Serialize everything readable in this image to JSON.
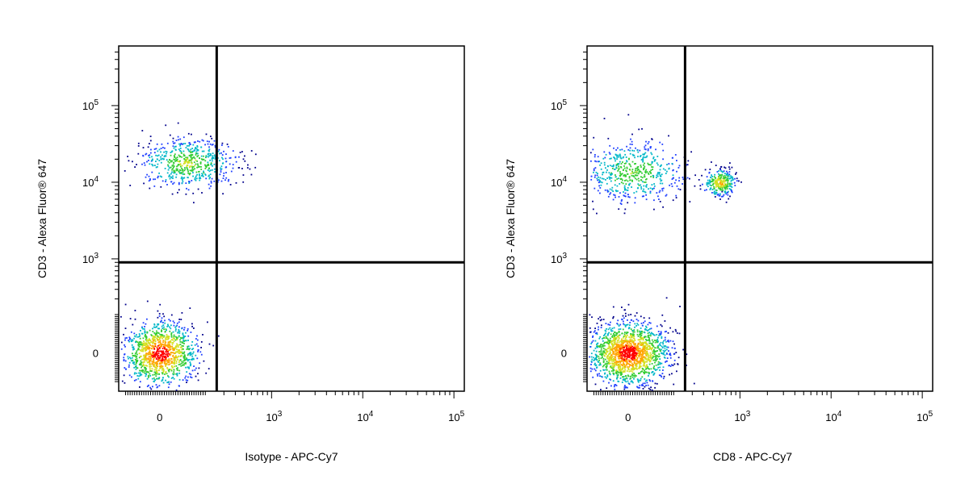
{
  "chart_data": [
    {
      "type": "scatter",
      "subtype": "flow-cytometry-density-dot-plot",
      "xlabel": "Isotype - APC-Cy7",
      "ylabel": "CD3 - Alexa Fluor® 647",
      "x_scale": "biexponential",
      "y_scale": "biexponential",
      "x_ticks": [
        {
          "label": "0",
          "value": 0
        },
        {
          "label": "10^3",
          "value": 1000
        },
        {
          "label": "10^4",
          "value": 10000
        },
        {
          "label": "10^5",
          "value": 100000
        }
      ],
      "y_ticks": [
        {
          "label": "0",
          "value": 0
        },
        {
          "label": "10^3",
          "value": 1000
        },
        {
          "label": "10^4",
          "value": 10000
        },
        {
          "label": "10^5",
          "value": 100000
        }
      ],
      "quadrant_gate": {
        "x": 250,
        "y": 900
      },
      "color_scale": [
        "#00008b",
        "#1f3fff",
        "#00b7c8",
        "#33cc33",
        "#d4e020",
        "#ffa500",
        "#ff0000"
      ],
      "populations": [
        {
          "x": 0,
          "y": 0,
          "x_spread": 40,
          "y_spread": 35,
          "count": 1150,
          "density": 1.0
        },
        {
          "x": 120,
          "y": 18000,
          "x_spread": 55,
          "y_spread": 28,
          "count": 600,
          "density": 0.6
        }
      ]
    },
    {
      "type": "scatter",
      "subtype": "flow-cytometry-density-dot-plot",
      "xlabel": "CD8 - APC-Cy7",
      "ylabel": "CD3 - Alexa Fluor® 647",
      "x_scale": "biexponential",
      "y_scale": "biexponential",
      "x_ticks": [
        {
          "label": "0",
          "value": 0
        },
        {
          "label": "10^3",
          "value": 1000
        },
        {
          "label": "10^4",
          "value": 10000
        },
        {
          "label": "10^5",
          "value": 100000
        }
      ],
      "y_ticks": [
        {
          "label": "0",
          "value": 0
        },
        {
          "label": "10^3",
          "value": 1000
        },
        {
          "label": "10^4",
          "value": 10000
        },
        {
          "label": "10^5",
          "value": 100000
        }
      ],
      "quadrant_gate": {
        "x": 250,
        "y": 900
      },
      "color_scale": [
        "#00008b",
        "#1f3fff",
        "#00b7c8",
        "#33cc33",
        "#d4e020",
        "#ffa500",
        "#ff0000"
      ],
      "populations": [
        {
          "x": 0,
          "y": 0,
          "x_spread": 45,
          "y_spread": 35,
          "count": 1600,
          "density": 1.0
        },
        {
          "x": 20,
          "y": 14000,
          "x_spread": 60,
          "y_spread": 35,
          "count": 550,
          "density": 0.55
        },
        {
          "x": 600,
          "y": 10000,
          "x_spread": 18,
          "y_spread": 15,
          "count": 280,
          "density": 0.75
        }
      ]
    }
  ]
}
